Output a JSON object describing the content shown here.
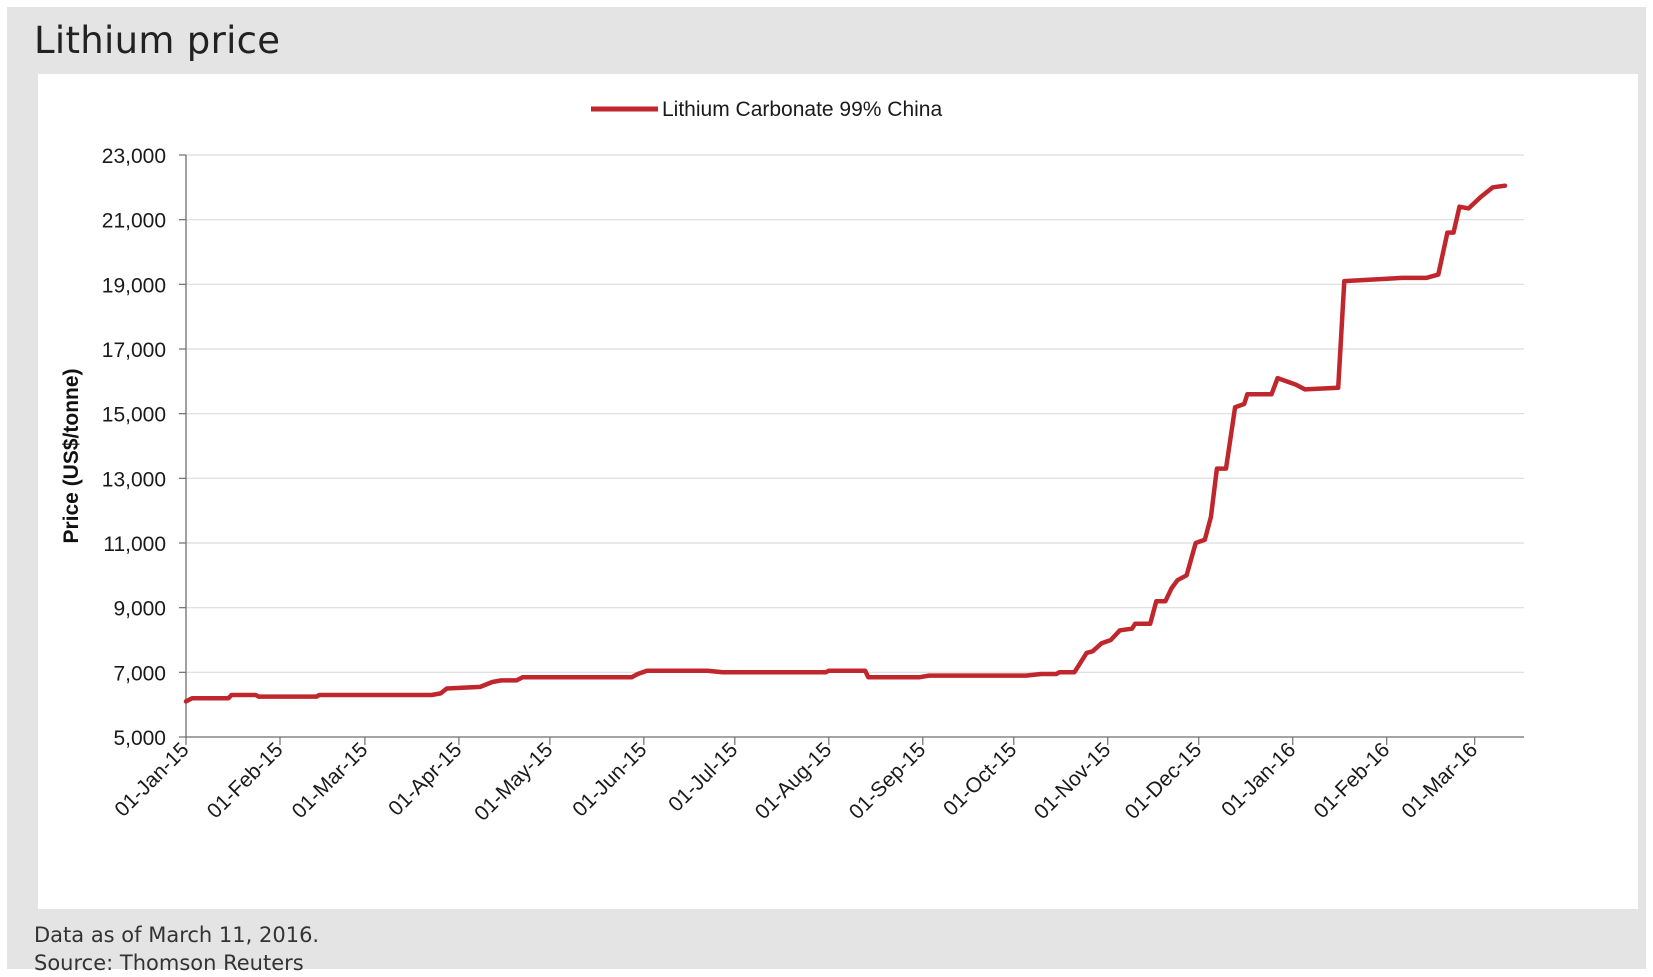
{
  "title": "Lithium price",
  "footer": {
    "note": "Data as of March 11, 2016.",
    "source": "Source: Thomson Reuters"
  },
  "chart_data": {
    "type": "line",
    "ylabel": "Price (US$/tonne)",
    "xlabel": "",
    "ylim": [
      5000,
      23000
    ],
    "yticks": [
      "5,000",
      "7,000",
      "9,000",
      "11,000",
      "13,000",
      "15,000",
      "17,000",
      "19,000",
      "21,000",
      "23,000"
    ],
    "xticks": [
      "01-Jan-15",
      "01-Feb-15",
      "01-Mar-15",
      "01-Apr-15",
      "01-May-15",
      "01-Jun-15",
      "01-Jul-15",
      "01-Aug-15",
      "01-Sep-15",
      "01-Oct-15",
      "01-Nov-15",
      "01-Dec-15",
      "01-Jan-16",
      "01-Feb-16",
      "01-Mar-16"
    ],
    "xlim": [
      "2015-01-01",
      "2016-03-11"
    ],
    "legend_position": "top-center",
    "grid": "horizontal",
    "series": [
      {
        "name": "Lithium Carbonate 99% China",
        "color": "#c0272d",
        "points": [
          [
            "2015-01-01",
            6100
          ],
          [
            "2015-01-03",
            6200
          ],
          [
            "2015-01-15",
            6200
          ],
          [
            "2015-01-16",
            6300
          ],
          [
            "2015-01-24",
            6300
          ],
          [
            "2015-01-25",
            6250
          ],
          [
            "2015-02-13",
            6250
          ],
          [
            "2015-02-14",
            6300
          ],
          [
            "2015-03-23",
            6300
          ],
          [
            "2015-03-26",
            6350
          ],
          [
            "2015-03-28",
            6500
          ],
          [
            "2015-04-08",
            6550
          ],
          [
            "2015-04-12",
            6700
          ],
          [
            "2015-04-15",
            6750
          ],
          [
            "2015-04-20",
            6750
          ],
          [
            "2015-04-22",
            6850
          ],
          [
            "2015-05-28",
            6850
          ],
          [
            "2015-05-30",
            6950
          ],
          [
            "2015-06-02",
            7050
          ],
          [
            "2015-06-22",
            7050
          ],
          [
            "2015-06-27",
            7000
          ],
          [
            "2015-07-31",
            7000
          ],
          [
            "2015-08-01",
            7050
          ],
          [
            "2015-08-13",
            7050
          ],
          [
            "2015-08-14",
            6850
          ],
          [
            "2015-08-31",
            6850
          ],
          [
            "2015-09-03",
            6900
          ],
          [
            "2015-10-05",
            6900
          ],
          [
            "2015-10-10",
            6950
          ],
          [
            "2015-10-15",
            6950
          ],
          [
            "2015-10-16",
            7000
          ],
          [
            "2015-10-21",
            7000
          ],
          [
            "2015-10-25",
            7600
          ],
          [
            "2015-10-27",
            7650
          ],
          [
            "2015-10-30",
            7900
          ],
          [
            "2015-11-02",
            8000
          ],
          [
            "2015-11-05",
            8300
          ],
          [
            "2015-11-09",
            8350
          ],
          [
            "2015-11-10",
            8500
          ],
          [
            "2015-11-15",
            8500
          ],
          [
            "2015-11-17",
            9200
          ],
          [
            "2015-11-20",
            9200
          ],
          [
            "2015-11-22",
            9600
          ],
          [
            "2015-11-24",
            9850
          ],
          [
            "2015-11-27",
            10000
          ],
          [
            "2015-11-30",
            11000
          ],
          [
            "2015-12-03",
            11100
          ],
          [
            "2015-12-05",
            11800
          ],
          [
            "2015-12-07",
            13300
          ],
          [
            "2015-12-10",
            13300
          ],
          [
            "2015-12-13",
            15200
          ],
          [
            "2015-12-16",
            15300
          ],
          [
            "2015-12-17",
            15600
          ],
          [
            "2015-12-25",
            15600
          ],
          [
            "2015-12-27",
            16100
          ],
          [
            "2016-01-02",
            15900
          ],
          [
            "2016-01-05",
            15750
          ],
          [
            "2016-01-16",
            15800
          ],
          [
            "2016-01-18",
            19100
          ],
          [
            "2016-02-06",
            19200
          ],
          [
            "2016-02-14",
            19200
          ],
          [
            "2016-02-18",
            19300
          ],
          [
            "2016-02-21",
            20600
          ],
          [
            "2016-02-23",
            20600
          ],
          [
            "2016-02-25",
            21400
          ],
          [
            "2016-02-28",
            21350
          ],
          [
            "2016-03-03",
            21700
          ],
          [
            "2016-03-07",
            22000
          ],
          [
            "2016-03-11",
            22050
          ]
        ]
      }
    ]
  }
}
